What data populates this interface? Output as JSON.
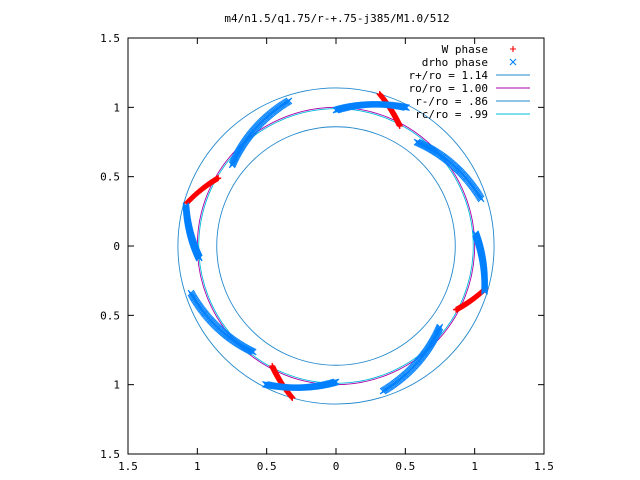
{
  "chart_data": {
    "type": "scatter",
    "title": "m4/n1.5/q1.75/r-+.75-j385/M1.0/512",
    "xlim": [
      -1.5,
      1.5
    ],
    "ylim": [
      -1.5,
      1.5
    ],
    "xticks": [
      -1.5,
      -1,
      -0.5,
      0,
      0.5,
      1,
      1.5
    ],
    "yticks": [
      -1.5,
      -1,
      -0.5,
      0,
      0.5,
      1,
      1.5
    ],
    "xtick_labels": [
      "1.5",
      "1",
      "0.5",
      "0",
      "0.5",
      "1",
      "1.5"
    ],
    "ytick_labels": [
      "1.5",
      "1",
      "0.5",
      "0",
      "0.5",
      "1",
      "1.5"
    ],
    "grid": false,
    "legend_position": "top-right",
    "point_series": [
      {
        "name": "W phase",
        "marker": "plus",
        "color": "#ff0000",
        "arcs": [
          {
            "start_deg": 74,
            "end_deg": 62,
            "r_start": 1.14,
            "r_end": 0.98
          },
          {
            "start_deg": 164,
            "end_deg": 150,
            "r_start": 1.12,
            "r_end": 0.98
          },
          {
            "start_deg": 254,
            "end_deg": 242,
            "r_start": 1.14,
            "r_end": 0.98
          },
          {
            "start_deg": 344,
            "end_deg": 332,
            "r_start": 1.12,
            "r_end": 0.98
          }
        ]
      },
      {
        "name": "drho phase",
        "marker": "cross",
        "color": "#0080ff",
        "arcs": [
          {
            "start_deg": 52,
            "end_deg": 18,
            "r_start": 0.95,
            "r_end": 1.1
          },
          {
            "start_deg": 90,
            "end_deg": 63,
            "r_start": 0.98,
            "r_end": 1.12
          },
          {
            "start_deg": 142,
            "end_deg": 108,
            "r_start": 0.95,
            "r_end": 1.1
          },
          {
            "start_deg": 185,
            "end_deg": 165,
            "r_start": 0.99,
            "r_end": 1.12
          },
          {
            "start_deg": 232,
            "end_deg": 198,
            "r_start": 0.97,
            "r_end": 1.1
          },
          {
            "start_deg": 270,
            "end_deg": 243,
            "r_start": 0.98,
            "r_end": 1.12
          },
          {
            "start_deg": 322,
            "end_deg": 288,
            "r_start": 0.95,
            "r_end": 1.1
          },
          {
            "start_deg": 5,
            "end_deg": 343,
            "r_start": 1.01,
            "r_end": 1.12
          }
        ]
      }
    ],
    "circles": [
      {
        "name": "r+/ro = 1.14",
        "r": 1.14,
        "color": "#2288cc"
      },
      {
        "name": "ro/ro = 1.00",
        "r": 1.0,
        "color": "#aa00aa"
      },
      {
        "name": "r-/ro = .86",
        "r": 0.86,
        "color": "#2288cc"
      },
      {
        "name": "rc/ro = .99",
        "r": 0.99,
        "color": "#00bbdd"
      }
    ]
  }
}
